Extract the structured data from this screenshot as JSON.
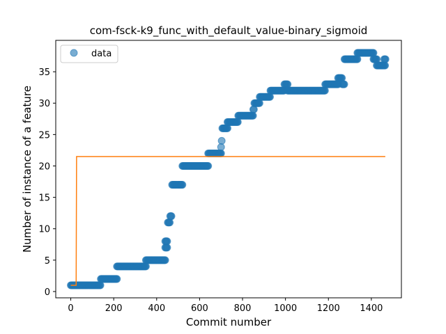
{
  "chart_data": {
    "type": "scatter",
    "title": "com-fsck-k9_func_with_default_value-binary_sigmoid",
    "xlabel": "Commit number",
    "ylabel": "Number of instance of a feature",
    "xlim": [
      -70,
      1540
    ],
    "ylim": [
      -1,
      40
    ],
    "x_ticks": [
      0,
      200,
      400,
      600,
      800,
      1000,
      1200,
      1400
    ],
    "y_ticks": [
      0,
      5,
      10,
      15,
      20,
      25,
      30,
      35
    ],
    "grid": false,
    "legend_position": "top-left",
    "colors": {
      "data": "#1f77b4",
      "fit": "#ff7f0e"
    },
    "series": [
      {
        "name": "data",
        "style": "markers",
        "segments": [
          {
            "x_start": 0,
            "x_end": 140,
            "y": 1
          },
          {
            "x_start": 140,
            "x_end": 215,
            "y": 2
          },
          {
            "x_start": 215,
            "x_end": 350,
            "y": 4
          },
          {
            "x_start": 350,
            "x_end": 440,
            "y": 5
          },
          {
            "x_start": 440,
            "x_end": 450,
            "y": 7
          },
          {
            "x_start": 440,
            "x_end": 450,
            "y": 8
          },
          {
            "x_start": 452,
            "x_end": 462,
            "y": 11
          },
          {
            "x_start": 463,
            "x_end": 470,
            "y": 12
          },
          {
            "x_start": 472,
            "x_end": 520,
            "y": 17
          },
          {
            "x_start": 520,
            "x_end": 640,
            "y": 20
          },
          {
            "x_start": 640,
            "x_end": 700,
            "y": 22
          },
          {
            "x_start": 700,
            "x_end": 702,
            "y": 23
          },
          {
            "x_start": 703,
            "x_end": 705,
            "y": 24
          },
          {
            "x_start": 706,
            "x_end": 730,
            "y": 26
          },
          {
            "x_start": 730,
            "x_end": 780,
            "y": 27
          },
          {
            "x_start": 780,
            "x_end": 850,
            "y": 28
          },
          {
            "x_start": 850,
            "x_end": 855,
            "y": 29
          },
          {
            "x_start": 855,
            "x_end": 880,
            "y": 30
          },
          {
            "x_start": 880,
            "x_end": 930,
            "y": 31
          },
          {
            "x_start": 930,
            "x_end": 995,
            "y": 32
          },
          {
            "x_start": 995,
            "x_end": 1010,
            "y": 33
          },
          {
            "x_start": 1010,
            "x_end": 1185,
            "y": 32
          },
          {
            "x_start": 1185,
            "x_end": 1245,
            "y": 33
          },
          {
            "x_start": 1245,
            "x_end": 1265,
            "y": 34
          },
          {
            "x_start": 1265,
            "x_end": 1275,
            "y": 33
          },
          {
            "x_start": 1275,
            "x_end": 1335,
            "y": 37
          },
          {
            "x_start": 1335,
            "x_end": 1410,
            "y": 38
          },
          {
            "x_start": 1410,
            "x_end": 1425,
            "y": 37
          },
          {
            "x_start": 1425,
            "x_end": 1465,
            "y": 36
          },
          {
            "x_start": 1460,
            "x_end": 1468,
            "y": 37
          }
        ]
      },
      {
        "style": "line",
        "points": [
          [
            0,
            1
          ],
          [
            25,
            1
          ],
          [
            25,
            1
          ],
          [
            27,
            21.5
          ],
          [
            1465,
            21.5
          ]
        ]
      }
    ]
  }
}
